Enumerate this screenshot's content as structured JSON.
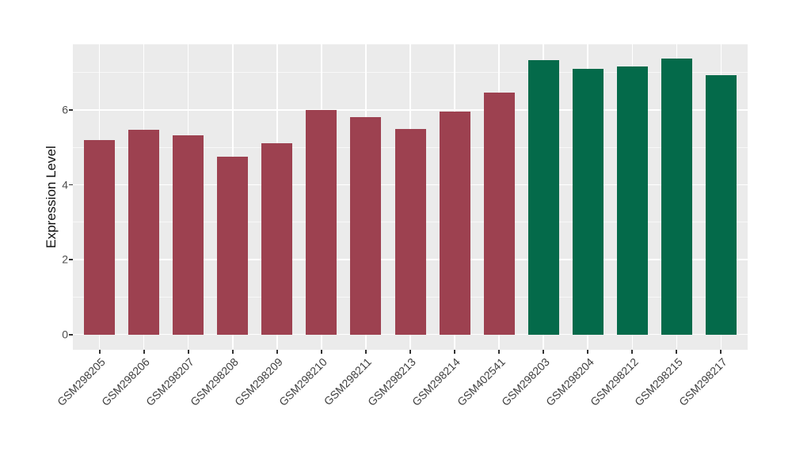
{
  "chart_data": {
    "type": "bar",
    "title": "",
    "xlabel": "",
    "ylabel": "Expression Level",
    "ylim": [
      0,
      7.75
    ],
    "yticks": [
      0,
      2,
      4,
      6
    ],
    "yticks_minor": [
      1,
      3,
      5,
      7
    ],
    "grid": "on",
    "legend_position": "none",
    "panel_bg": "#EBEBEB",
    "grid_color": "#FFFFFF",
    "tick_mark_color": "#333333",
    "tick_label_color": "#4D4D4D",
    "axis_title_color": "#111111",
    "group_colors": {
      "red": "#9D4150",
      "green": "#046A4A"
    },
    "categories": [
      "GSM298205",
      "GSM298206",
      "GSM298207",
      "GSM298208",
      "GSM298209",
      "GSM298210",
      "GSM298211",
      "GSM298213",
      "GSM298214",
      "GSM402541",
      "GSM298203",
      "GSM298204",
      "GSM298212",
      "GSM298215",
      "GSM298217"
    ],
    "series": [
      {
        "name": "red-group",
        "color": "#9D4150",
        "values": [
          5.2,
          5.48,
          5.33,
          4.76,
          5.11,
          6.0,
          5.81,
          5.49,
          5.96,
          6.46,
          null,
          null,
          null,
          null,
          null
        ]
      },
      {
        "name": "green-group",
        "color": "#046A4A",
        "values": [
          null,
          null,
          null,
          null,
          null,
          null,
          null,
          null,
          null,
          null,
          7.34,
          7.1,
          7.16,
          7.38,
          6.94
        ]
      }
    ],
    "bar_groups": [
      "red",
      "red",
      "red",
      "red",
      "red",
      "red",
      "red",
      "red",
      "red",
      "red",
      "green",
      "green",
      "green",
      "green",
      "green"
    ],
    "values": [
      5.2,
      5.48,
      5.33,
      4.76,
      5.11,
      6.0,
      5.81,
      5.49,
      5.96,
      6.46,
      7.34,
      7.1,
      7.16,
      7.38,
      6.94
    ]
  }
}
